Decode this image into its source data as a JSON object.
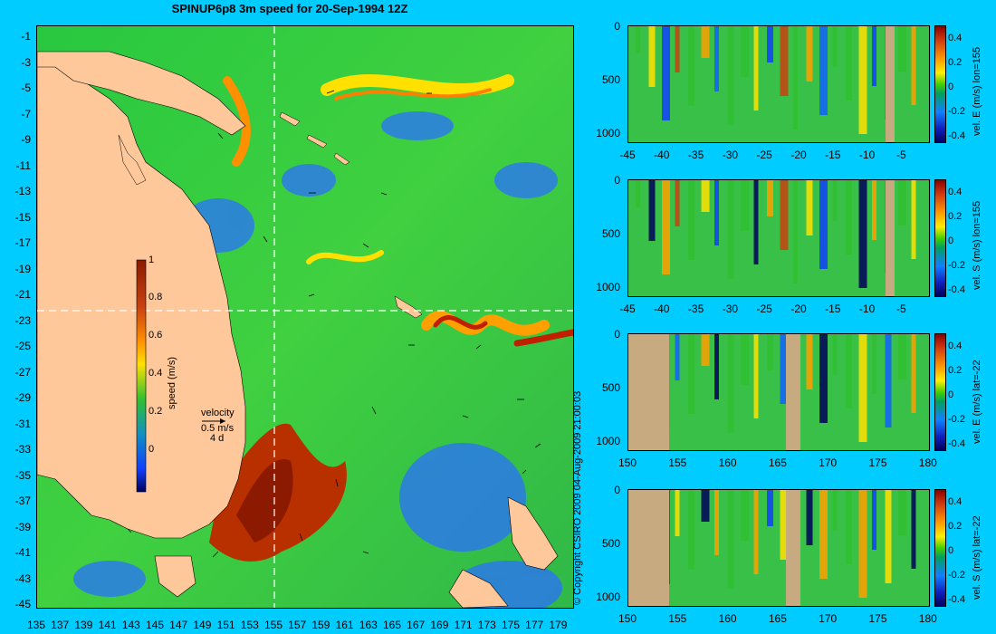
{
  "title": "SPINUP6p8 3m speed for 20-Sep-1994 12Z",
  "copyright": "© Copyright CSIRO 2009   04-Aug-2009 21:00:03",
  "map": {
    "lat_ticks": [
      "-1",
      "-3",
      "-5",
      "-7",
      "-9",
      "-11",
      "-13",
      "-15",
      "-17",
      "-19",
      "-21",
      "-23",
      "-25",
      "-27",
      "-29",
      "-31",
      "-33",
      "-35",
      "-37",
      "-39",
      "-41",
      "-43",
      "-45"
    ],
    "lon_ticks": [
      "135",
      "137",
      "139",
      "141",
      "143",
      "145",
      "147",
      "149",
      "151",
      "153",
      "155",
      "157",
      "159",
      "161",
      "163",
      "165",
      "167",
      "169",
      "171",
      "173",
      "175",
      "177",
      "179"
    ],
    "colorbar": {
      "label": "speed (m/s)",
      "ticks": [
        "1",
        "0.8",
        "0.6",
        "0.4",
        "0.2",
        "0"
      ]
    },
    "velocity_key": {
      "title": "velocity",
      "speed": "0.5 m/s",
      "period": "4 d"
    },
    "colors": {
      "land": "#ffc89a",
      "ocean_low": "#1060ff",
      "ocean_mid": "#30c030",
      "ocean_high": "#c03000"
    }
  },
  "sections": [
    {
      "label": "vel. E (m/s) lon=155",
      "depth_ticks": [
        "0",
        "500",
        "1000"
      ],
      "x_ticks": [
        "-45",
        "-40",
        "-35",
        "-30",
        "-25",
        "-20",
        "-15",
        "-10",
        "-5"
      ],
      "cbar_ticks": [
        "0.4",
        "0.2",
        "0",
        "-0.2",
        "-0.4"
      ]
    },
    {
      "label": "vel. S (m/s) lon=155",
      "depth_ticks": [
        "0",
        "500",
        "1000"
      ],
      "x_ticks": [
        "-45",
        "-40",
        "-35",
        "-30",
        "-25",
        "-20",
        "-15",
        "-10",
        "-5"
      ],
      "cbar_ticks": [
        "0.4",
        "0.2",
        "0",
        "-0.2",
        "-0.4"
      ]
    },
    {
      "label": "vel. E (m/s) lat=-22",
      "depth_ticks": [
        "0",
        "500",
        "1000"
      ],
      "x_ticks": [
        "150",
        "155",
        "160",
        "165",
        "170",
        "175",
        "180"
      ],
      "cbar_ticks": [
        "0.4",
        "0.2",
        "0",
        "-0.2",
        "-0.4"
      ]
    },
    {
      "label": "vel. S (m/s) lat=-22",
      "depth_ticks": [
        "0",
        "500",
        "1000"
      ],
      "x_ticks": [
        "150",
        "155",
        "160",
        "165",
        "170",
        "175",
        "180"
      ],
      "cbar_ticks": [
        "0.4",
        "0.2",
        "0",
        "-0.2",
        "-0.4"
      ]
    }
  ]
}
